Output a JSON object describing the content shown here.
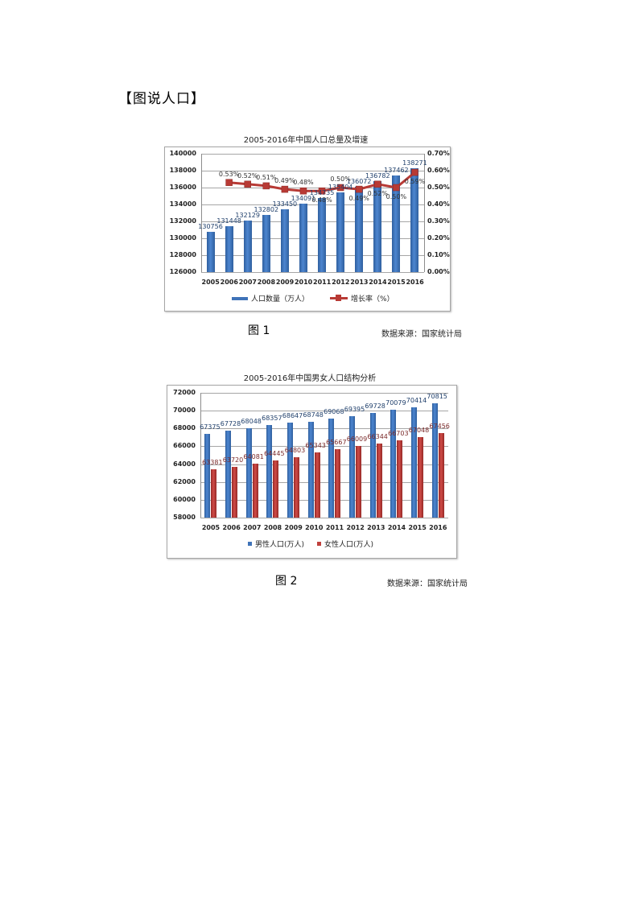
{
  "section_title": "【图说人口】",
  "figure1": {
    "caption": "图 1",
    "source": "数据来源：国家统计局",
    "chart_title": "2005-2016年中国人口总量及增速",
    "legend": {
      "bar": "人口数量（万人）",
      "line": "增长率（%）"
    }
  },
  "figure2": {
    "caption": "图 2",
    "source": "数据来源：国家统计局",
    "chart_title": "2005-2016年中国男女人口结构分析",
    "legend": {
      "male": "男性人口(万人)",
      "female": "女性人口(万人)"
    }
  },
  "colors": {
    "blue": "#3f73b8",
    "red": "#c0403c",
    "line": "#b83a35",
    "grid": "#a6a6a6"
  },
  "chart_data": [
    {
      "type": "bar+line",
      "title": "2005-2016年中国人口总量及增速",
      "categories": [
        "2005",
        "2006",
        "2007",
        "2008",
        "2009",
        "2010",
        "2011",
        "2012",
        "2013",
        "2014",
        "2015",
        "2016"
      ],
      "series": [
        {
          "name": "人口数量（万人）",
          "type": "bar",
          "axis": "left",
          "values": [
            130756,
            131448,
            132129,
            132802,
            133450,
            134091,
            134735,
            135404,
            136072,
            136782,
            137462,
            138271
          ],
          "labels": [
            "130756",
            "131448",
            "132129",
            "132802",
            "133450",
            "134091",
            "134735",
            "135404",
            "136072",
            "136782",
            "137462",
            "138271"
          ]
        },
        {
          "name": "增长率（%）",
          "type": "line",
          "axis": "right",
          "values": [
            null,
            0.53,
            0.52,
            0.51,
            0.49,
            0.48,
            0.48,
            0.5,
            0.49,
            0.52,
            0.5,
            0.59
          ],
          "labels": [
            "",
            "0.53%",
            "0.52%",
            "0.51%",
            "0.49%",
            "0.48%",
            "0.48%",
            "0.50%",
            "0.49%",
            "0.52%",
            "0.50%",
            "0.59%"
          ]
        }
      ],
      "y_left": {
        "min": 126000,
        "max": 140000,
        "step": 2000,
        "ticks": [
          "140000",
          "138000",
          "136000",
          "134000",
          "132000",
          "130000",
          "128000",
          "126000"
        ]
      },
      "y_right": {
        "min": 0,
        "max": 0.7,
        "step": 0.1,
        "ticks": [
          "0.70%",
          "0.60%",
          "0.50%",
          "0.40%",
          "0.30%",
          "0.20%",
          "0.10%",
          "0.00%"
        ]
      },
      "grid": true,
      "legend_position": "bottom"
    },
    {
      "type": "bar",
      "title": "2005-2016年中国男女人口结构分析",
      "categories": [
        "2005",
        "2006",
        "2007",
        "2008",
        "2009",
        "2010",
        "2011",
        "2012",
        "2013",
        "2014",
        "2015",
        "2016"
      ],
      "series": [
        {
          "name": "男性人口(万人)",
          "values": [
            67375,
            67728,
            68048,
            68357,
            68647,
            68748,
            69068,
            69395,
            69728,
            70079,
            70414,
            70815
          ],
          "labels": [
            "67375",
            "67728",
            "68048",
            "68357",
            "68647",
            "68748",
            "69068",
            "69395",
            "69728",
            "70079",
            "70414",
            "70815"
          ]
        },
        {
          "name": "女性人口(万人)",
          "values": [
            63381,
            63720,
            64081,
            64445,
            64803,
            65343,
            65667,
            66009,
            66344,
            66703,
            67048,
            67456
          ],
          "labels": [
            "63381",
            "63720",
            "64081",
            "64445",
            "64803",
            "65343",
            "65667",
            "66009",
            "66344",
            "66703",
            "67048",
            "67456"
          ]
        }
      ],
      "y": {
        "min": 58000,
        "max": 72000,
        "step": 2000,
        "ticks": [
          "72000",
          "70000",
          "68000",
          "66000",
          "64000",
          "62000",
          "60000",
          "58000"
        ]
      },
      "grid": true,
      "legend_position": "bottom"
    }
  ]
}
